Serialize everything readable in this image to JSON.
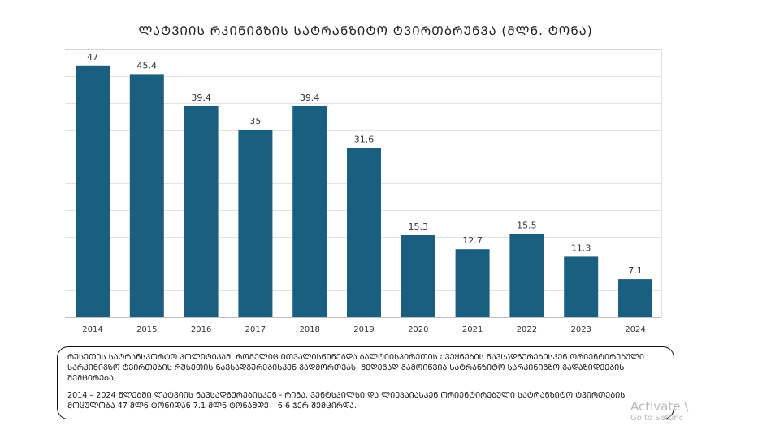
{
  "chart_data": {
    "type": "bar",
    "title": "ᲚᲐᲢᲕᲘᲘᲡ ᲠᲙᲘᲜᲘᲒᲖᲘᲡ ᲡᲐᲢᲠᲐᲜᲖᲘᲢᲝ ᲢᲕᲘᲠᲗᲑᲠᲣᲜᲕᲐ (ᲛᲚᲜ. ᲢᲝᲜᲐ)",
    "xlabel": "",
    "ylabel": "",
    "categories": [
      "2014",
      "2015",
      "2016",
      "2017",
      "2018",
      "2019",
      "2020",
      "2021",
      "2022",
      "2023",
      "2024"
    ],
    "values": [
      47,
      45.4,
      39.4,
      35,
      39.4,
      31.6,
      15.3,
      12.7,
      15.5,
      11.3,
      7.1
    ],
    "data_labels": [
      "47",
      "45.4",
      "39.4",
      "35",
      "39.4",
      "31.6",
      "15.3",
      "12.7",
      "15.5",
      "11.3",
      "7.1"
    ],
    "ylim": [
      0,
      50
    ],
    "grid": true,
    "bar_color": "#1a5f80"
  },
  "note": {
    "paragraph1": "ᲠᲣᲡᲔᲗᲘᲡ ᲡᲐᲢᲠᲐᲜᲡᲞᲝᲠᲢᲝ ᲞᲝᲚᲘᲢᲘᲙᲐᲛ, ᲠᲝᲛᲔᲚᲘᲪ ᲘᲗᲕᲐᲚᲘᲡᲬᲘᲜᲔᲑᲓᲐ ᲑᲐᲚᲢᲘᲘᲡᲞᲘᲠᲔᲗᲘᲡ ᲥᲕᲔᲧᲜᲔᲑᲘᲡ ᲜᲐᲕᲡᲐᲓᲒᲣᲠᲔᲑᲘᲡᲙᲔᲜ ᲝᲠᲘᲔᲜᲢᲘᲠᲔᲑᲣᲚᲘ ᲡᲐᲠᲙᲘᲜᲘᲒᲖᲝ ᲢᲕᲘᲠᲗᲔᲑᲘᲡ ᲠᲣᲡᲔᲗᲘᲡ ᲜᲐᲕᲡᲐᲓᲒᲣᲠᲔᲑᲘᲡᲙᲔᲜ ᲒᲐᲓᲛᲝᲠᲗᲕᲐᲡ, ᲨᲔᲓᲔᲒᲐᲓ  ᲒᲐᲛᲝᲘᲬᲕᲘᲐ ᲡᲐᲢᲠᲐᲜᲖᲘᲢᲝ ᲡᲐᲠᲙᲘᲜᲘᲒᲖᲝ ᲒᲐᲓᲐᲖᲘᲓᲕᲔᲑᲘᲡ ᲨᲔᲛᲪᲘᲠᲔᲑᲐ;",
    "paragraph2": "2014 – 2024 ᲬᲚᲔᲑᲨᲘ ᲚᲐᲢᲕᲘᲘᲡ ᲜᲐᲕᲡᲐᲓᲒᲣᲠᲔᲑᲘᲡᲙᲔᲜ - ᲠᲘᲒᲐ, ᲕᲔᲜᲢᲡᲞᲘᲚᲡᲘ ᲓᲐ ᲚᲘᲔᲞᲐᲘᲐᲡᲙᲔᲜ ᲝᲠᲘᲔᲜᲢᲘᲠᲔᲑᲣᲚᲘ ᲡᲐᲢᲠᲐᲜᲖᲘᲢᲝ ᲢᲕᲘᲠᲗᲔᲑᲘᲡ ᲛᲝᲪᲣᲚᲝᲑᲐ 47 ᲛᲚᲜ ᲢᲝᲜᲘᲓᲐᲜ 7.1 ᲛᲚᲜ ᲢᲝᲜᲐᲛᲓᲔ – 6.6 ᲯᲔᲠ ᲨᲔᲛᲪᲘᲠᲓᲐ."
  },
  "watermark": {
    "line1": "Activate \\",
    "line2": "Go to Settinc"
  }
}
